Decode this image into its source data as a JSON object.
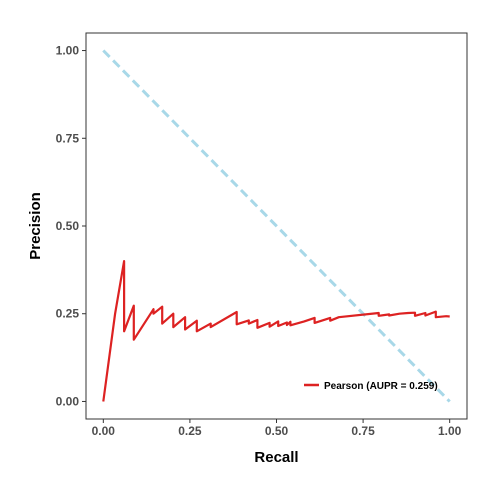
{
  "chart_data": {
    "type": "line",
    "title": "",
    "xlabel": "Recall",
    "ylabel": "Precision",
    "xlim": [
      -0.05,
      1.05
    ],
    "ylim": [
      -0.05,
      1.05
    ],
    "x_ticks": [
      0,
      0.25,
      0.5,
      0.75,
      1
    ],
    "x_tick_labels": [
      "0.00",
      "0.25",
      "0.50",
      "0.75",
      "1.00"
    ],
    "y_ticks": [
      0,
      0.25,
      0.5,
      0.75,
      1
    ],
    "y_tick_labels": [
      "0.00",
      "0.25",
      "0.50",
      "0.75",
      "1.00"
    ],
    "grid": false,
    "legend_position": "bottom-right",
    "series": [
      {
        "name": "Pearson (AUPR = 0.259)",
        "color": "#dd2222",
        "style": "solid",
        "points": [
          [
            0.0,
            0.0
          ],
          [
            0.034,
            0.25
          ],
          [
            0.06,
            0.4
          ],
          [
            0.06,
            0.2
          ],
          [
            0.088,
            0.273
          ],
          [
            0.088,
            0.176
          ],
          [
            0.145,
            0.263
          ],
          [
            0.145,
            0.25
          ],
          [
            0.17,
            0.27
          ],
          [
            0.17,
            0.222
          ],
          [
            0.202,
            0.25
          ],
          [
            0.202,
            0.212
          ],
          [
            0.236,
            0.24
          ],
          [
            0.236,
            0.205
          ],
          [
            0.27,
            0.23
          ],
          [
            0.27,
            0.2
          ],
          [
            0.31,
            0.222
          ],
          [
            0.31,
            0.212
          ],
          [
            0.385,
            0.255
          ],
          [
            0.385,
            0.22
          ],
          [
            0.42,
            0.231
          ],
          [
            0.42,
            0.222
          ],
          [
            0.445,
            0.232
          ],
          [
            0.445,
            0.21
          ],
          [
            0.48,
            0.224
          ],
          [
            0.48,
            0.213
          ],
          [
            0.505,
            0.228
          ],
          [
            0.505,
            0.215
          ],
          [
            0.53,
            0.225
          ],
          [
            0.53,
            0.218
          ],
          [
            0.54,
            0.227
          ],
          [
            0.54,
            0.217
          ],
          [
            0.58,
            0.228
          ],
          [
            0.61,
            0.238
          ],
          [
            0.61,
            0.224
          ],
          [
            0.655,
            0.238
          ],
          [
            0.655,
            0.23
          ],
          [
            0.68,
            0.24
          ],
          [
            0.795,
            0.252
          ],
          [
            0.795,
            0.244
          ],
          [
            0.825,
            0.248
          ],
          [
            0.825,
            0.245
          ],
          [
            0.855,
            0.25
          ],
          [
            0.88,
            0.252
          ],
          [
            0.9,
            0.253
          ],
          [
            0.9,
            0.244
          ],
          [
            0.93,
            0.252
          ],
          [
            0.93,
            0.245
          ],
          [
            0.96,
            0.256
          ],
          [
            0.96,
            0.24
          ],
          [
            0.99,
            0.243
          ],
          [
            1.0,
            0.242
          ]
        ]
      },
      {
        "name": "",
        "color": "#a8d8e8",
        "style": "dashed",
        "points": [
          [
            0.0,
            1.0
          ],
          [
            1.0,
            0.0
          ]
        ]
      }
    ]
  }
}
